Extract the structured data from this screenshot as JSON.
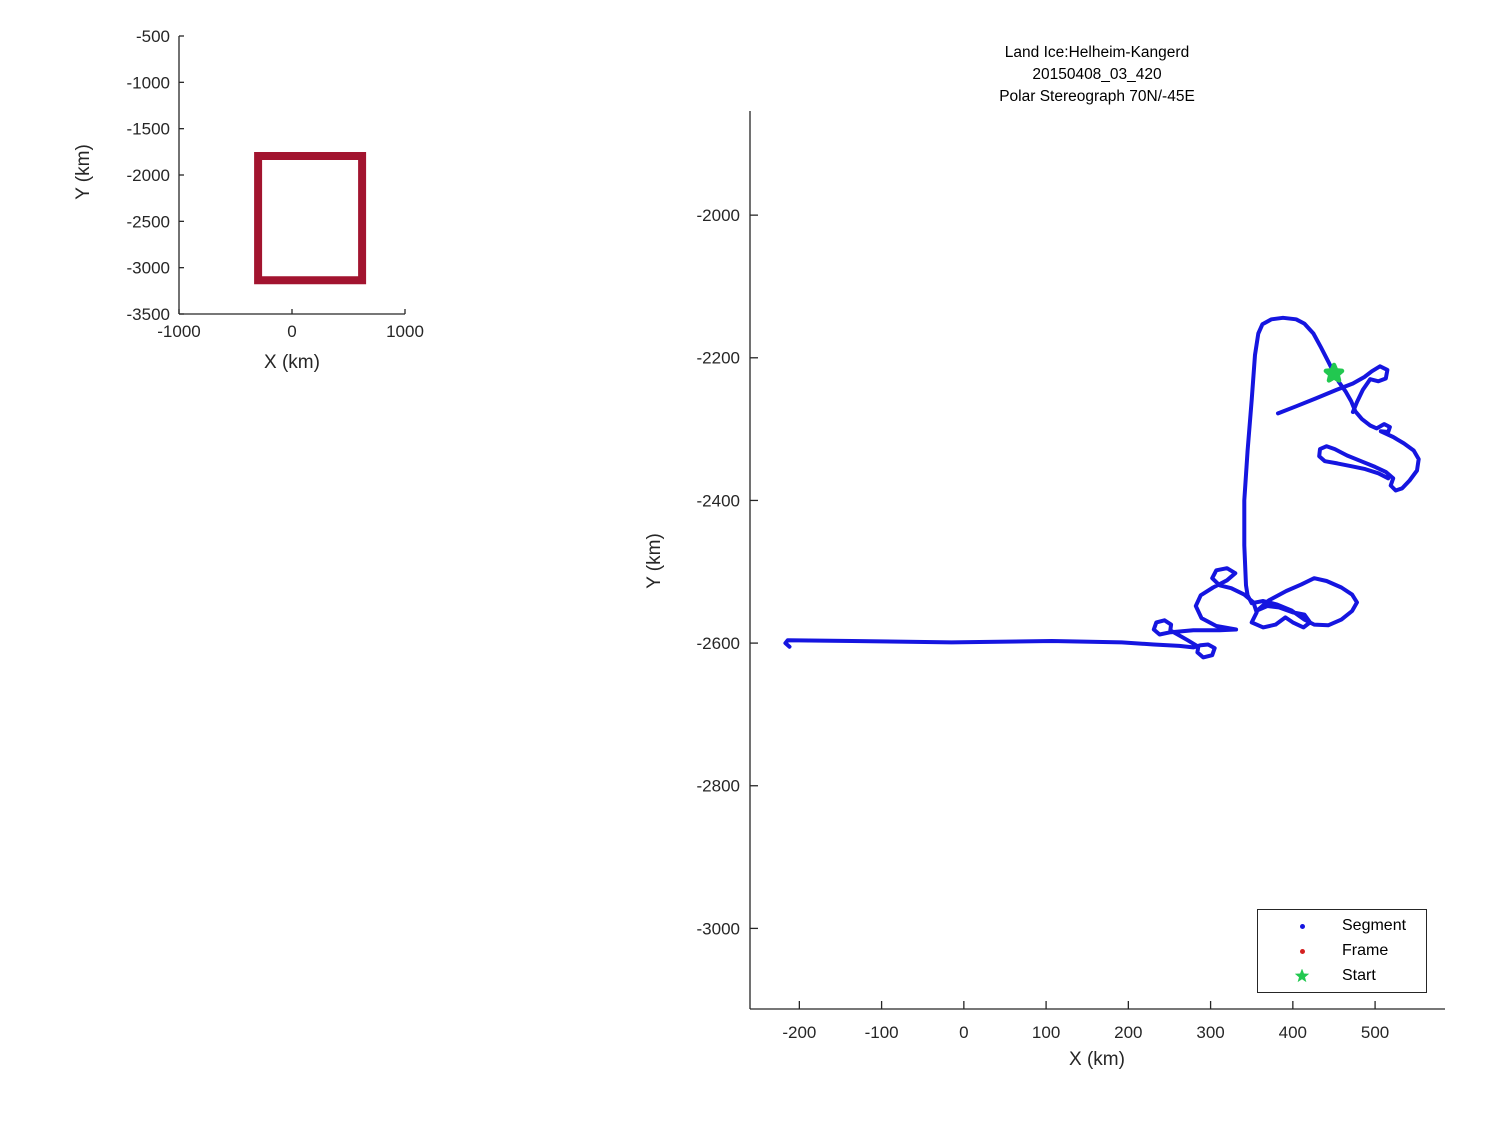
{
  "figure": {
    "background": "#ffffff",
    "axis_color": "#262626",
    "text_color": "#262626"
  },
  "chart_data": [
    {
      "id": "overview",
      "type": "line",
      "title": "",
      "xlabel": "X (km)",
      "ylabel": "Y (km)",
      "xlim": [
        -1000,
        1000
      ],
      "ylim": [
        -3500,
        -500
      ],
      "xticks": [
        -1000,
        0,
        1000
      ],
      "yticks": [
        -500,
        -1000,
        -1500,
        -2000,
        -2500,
        -3000,
        -3500
      ],
      "grid": false,
      "legend_position": "none",
      "series": [
        {
          "name": "main-plot-extent-box",
          "color": "#A2142F",
          "line_width": 8,
          "closed": true,
          "points": [
            [
              -300,
              -1795
            ],
            [
              620,
              -1795
            ],
            [
              620,
              -3135
            ],
            [
              -300,
              -3135
            ]
          ]
        }
      ]
    },
    {
      "id": "main",
      "type": "scatter",
      "title_lines": [
        "Land Ice:Helheim-Kangerd",
        "20150408_03_420",
        "Polar Stereograph 70N/-45E"
      ],
      "xlabel": "X (km)",
      "ylabel": "Y (km)",
      "xlim": [
        -260,
        585
      ],
      "ylim": [
        -3113,
        -1854
      ],
      "xticks": [
        -200,
        -100,
        0,
        100,
        200,
        300,
        400,
        500
      ],
      "yticks": [
        -2000,
        -2200,
        -2400,
        -2600,
        -2800,
        -3000
      ],
      "grid": false,
      "legend_position": "inside-lower-right",
      "legend": [
        {
          "label": "Segment",
          "color": "#1515E0",
          "marker": "dot"
        },
        {
          "label": "Frame",
          "color": "#D42020",
          "marker": "dot"
        },
        {
          "label": "Start",
          "color": "#22C850",
          "marker": "pentagram"
        }
      ],
      "series": [
        {
          "name": "Segment",
          "color": "#1515E0",
          "line_width": 4,
          "track": [
            [
              [
                -212,
                -2605
              ],
              [
                -217,
                -2600
              ],
              [
                -214,
                -2596
              ],
              [
                -136,
                -2597
              ],
              [
                -15,
                -2599
              ],
              [
                107,
                -2597
              ],
              [
                192,
                -2599
              ],
              [
                231,
                -2602
              ],
              [
                262,
                -2604
              ],
              [
                279,
                -2606
              ],
              [
                288,
                -2603
              ],
              [
                297,
                -2602
              ],
              [
                305,
                -2607
              ],
              [
                302,
                -2617
              ],
              [
                291,
                -2620
              ],
              [
                284,
                -2613
              ],
              [
                285,
                -2605
              ],
              [
                272,
                -2596
              ],
              [
                257,
                -2586
              ],
              [
                251,
                -2582
              ],
              [
                252,
                -2574
              ],
              [
                244,
                -2568
              ],
              [
                234,
                -2571
              ],
              [
                231,
                -2581
              ],
              [
                238,
                -2588
              ],
              [
                250,
                -2585
              ],
              [
                279,
                -2582
              ],
              [
                311,
                -2582
              ],
              [
                331,
                -2581
              ],
              [
                307,
                -2576
              ],
              [
                289,
                -2565
              ],
              [
                282,
                -2548
              ],
              [
                288,
                -2533
              ],
              [
                303,
                -2522
              ],
              [
                320,
                -2512
              ],
              [
                330,
                -2502
              ],
              [
                320,
                -2495
              ],
              [
                307,
                -2498
              ],
              [
                302,
                -2509
              ],
              [
                311,
                -2519
              ],
              [
                325,
                -2523
              ],
              [
                341,
                -2532
              ],
              [
                352,
                -2543
              ],
              [
                356,
                -2557
              ],
              [
                350,
                -2571
              ],
              [
                364,
                -2578
              ],
              [
                379,
                -2574
              ],
              [
                391,
                -2564
              ],
              [
                400,
                -2571
              ],
              [
                413,
                -2578
              ],
              [
                421,
                -2571
              ],
              [
                414,
                -2560
              ],
              [
                400,
                -2557
              ],
              [
                383,
                -2550
              ],
              [
                369,
                -2548
              ],
              [
                357,
                -2554
              ],
              [
                371,
                -2540
              ],
              [
                392,
                -2527
              ],
              [
                410,
                -2518
              ],
              [
                426,
                -2509
              ],
              [
                441,
                -2513
              ],
              [
                459,
                -2522
              ],
              [
                472,
                -2532
              ],
              [
                478,
                -2543
              ],
              [
                472,
                -2555
              ],
              [
                459,
                -2567
              ],
              [
                443,
                -2575
              ],
              [
                426,
                -2574
              ],
              [
                414,
                -2567
              ],
              [
                398,
                -2554
              ],
              [
                381,
                -2546
              ],
              [
                364,
                -2541
              ],
              [
                350,
                -2544
              ],
              [
                345,
                -2533
              ],
              [
                343,
                -2519
              ],
              [
                341,
                -2463
              ],
              [
                341,
                -2400
              ],
              [
                345,
                -2330
              ],
              [
                350,
                -2259
              ],
              [
                354,
                -2196
              ],
              [
                358,
                -2166
              ],
              [
                363,
                -2153
              ],
              [
                374,
                -2146
              ],
              [
                388,
                -2144
              ],
              [
                404,
                -2146
              ],
              [
                414,
                -2152
              ],
              [
                425,
                -2166
              ],
              [
                434,
                -2185
              ],
              [
                443,
                -2205
              ],
              [
                449,
                -2219
              ],
              [
                456,
                -2234
              ],
              [
                464,
                -2247
              ],
              [
                471,
                -2261
              ],
              [
                476,
                -2275
              ],
              [
                484,
                -2286
              ],
              [
                494,
                -2295
              ],
              [
                502,
                -2299
              ],
              [
                511,
                -2293
              ],
              [
                518,
                -2297
              ],
              [
                516,
                -2304
              ],
              [
                507,
                -2303
              ],
              [
                522,
                -2311
              ],
              [
                535,
                -2320
              ],
              [
                547,
                -2330
              ],
              [
                553,
                -2342
              ],
              [
                551,
                -2358
              ],
              [
                542,
                -2372
              ],
              [
                533,
                -2383
              ],
              [
                525,
                -2386
              ],
              [
                519,
                -2379
              ],
              [
                522,
                -2369
              ],
              [
                513,
                -2360
              ],
              [
                500,
                -2353
              ],
              [
                483,
                -2345
              ],
              [
                466,
                -2337
              ],
              [
                451,
                -2328
              ],
              [
                441,
                -2324
              ],
              [
                433,
                -2328
              ],
              [
                432,
                -2338
              ],
              [
                439,
                -2345
              ],
              [
                454,
                -2348
              ],
              [
                471,
                -2352
              ],
              [
                488,
                -2356
              ],
              [
                504,
                -2362
              ],
              [
                516,
                -2369
              ]
            ],
            [
              [
                382,
                -2278
              ],
              [
                404,
                -2268
              ],
              [
                428,
                -2257
              ],
              [
                453,
                -2245
              ],
              [
                473,
                -2236
              ],
              [
                487,
                -2227
              ],
              [
                496,
                -2219
              ],
              [
                506,
                -2212
              ],
              [
                515,
                -2217
              ],
              [
                513,
                -2229
              ],
              [
                504,
                -2233
              ],
              [
                494,
                -2230
              ],
              [
                485,
                -2245
              ],
              [
                478,
                -2262
              ],
              [
                473,
                -2276
              ]
            ]
          ]
        },
        {
          "name": "Frame",
          "color": "#D42020",
          "track": []
        },
        {
          "name": "Start",
          "color": "#22C850",
          "marker": "pentagram",
          "points": [
            [
              450,
              -2222
            ]
          ]
        }
      ]
    }
  ]
}
